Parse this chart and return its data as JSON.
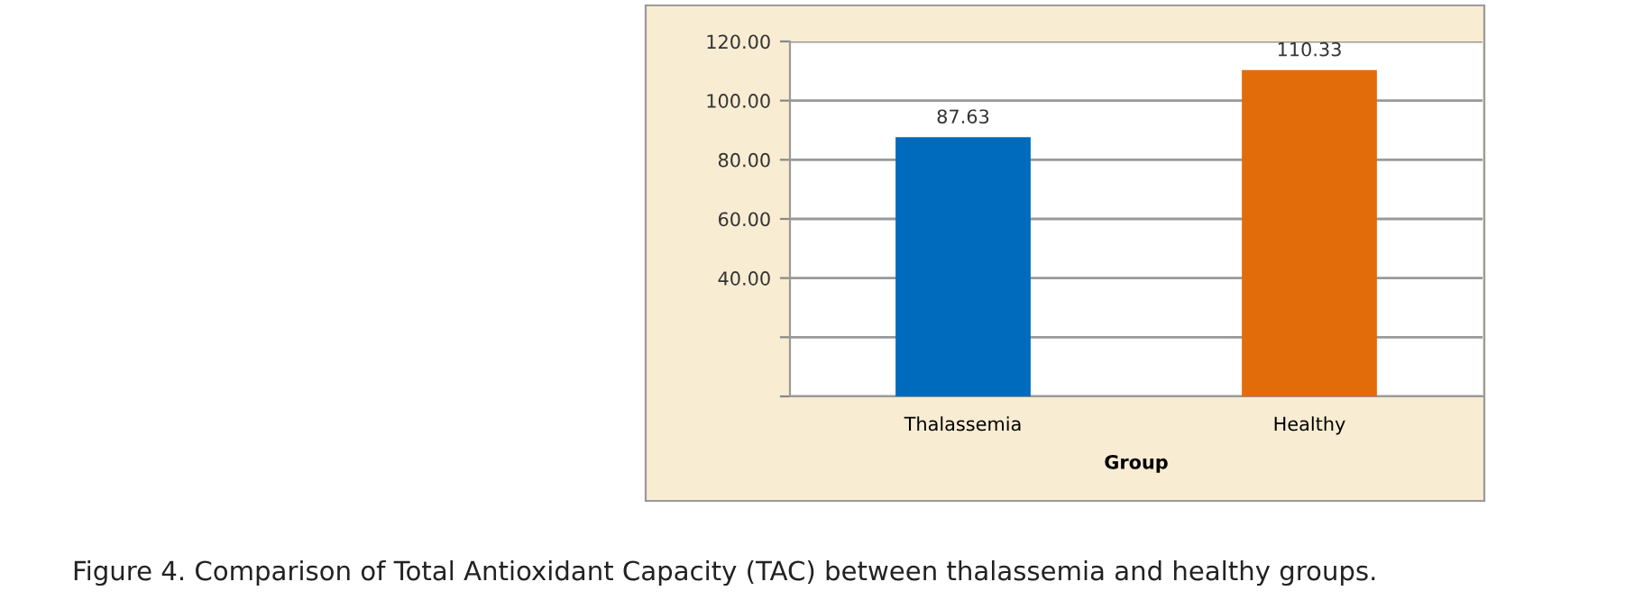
{
  "chart_data": {
    "type": "bar",
    "categories": [
      "Thalassemia",
      "Healthy"
    ],
    "values": [
      87.63,
      110.33
    ],
    "colors": [
      "#006abd",
      "#e36c0a"
    ],
    "xlabel": "Group",
    "ylim": [
      0,
      120
    ],
    "yticks": [
      {
        "value": 0,
        "label": null
      },
      {
        "value": 20,
        "label": null
      },
      {
        "value": 40,
        "label": "40.00"
      },
      {
        "value": 60,
        "label": "60.00"
      },
      {
        "value": 80,
        "label": "80.00"
      },
      {
        "value": 100,
        "label": "100.00"
      },
      {
        "value": 120,
        "label": "120.00"
      }
    ],
    "grid": "y",
    "data_labels": true,
    "annotations": [
      "Figure 4. Comparison of Total Antioxidant Capacity (TAC) between thalassemia and healthy groups."
    ]
  }
}
